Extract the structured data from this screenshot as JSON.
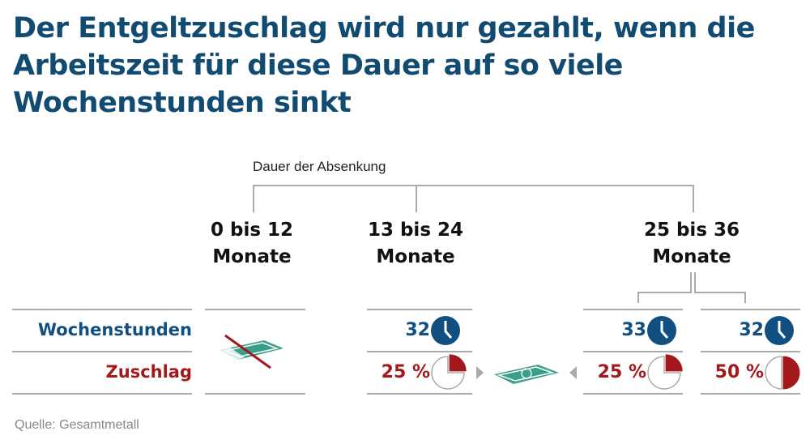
{
  "title": "Der Entgeltzuschlag wird nur gezahlt, wenn die Arbeitszeit für diese Dauer auf so viele Wochenstunden sinkt",
  "duration_label": "Dauer der Absenkung",
  "periods": [
    {
      "line1": "0 bis 12",
      "line2": "Monate"
    },
    {
      "line1": "13 bis 24",
      "line2": "Monate"
    },
    {
      "line1": "25 bis 36",
      "line2": "Monate"
    }
  ],
  "rows": {
    "hours": "Wochenstunden",
    "bonus": "Zuschlag"
  },
  "cells": [
    {
      "hours": "32",
      "bonus": "25 %",
      "bonus_fraction": 0.25
    },
    {
      "hours": "33",
      "bonus": "25 %",
      "bonus_fraction": 0.25
    },
    {
      "hours": "32",
      "bonus": "50 %",
      "bonus_fraction": 0.5
    }
  ],
  "source": "Quelle: Gesamtmetall",
  "colors": {
    "blue": "#114f80",
    "red": "#a3191b",
    "money": "#3a9e8a"
  }
}
